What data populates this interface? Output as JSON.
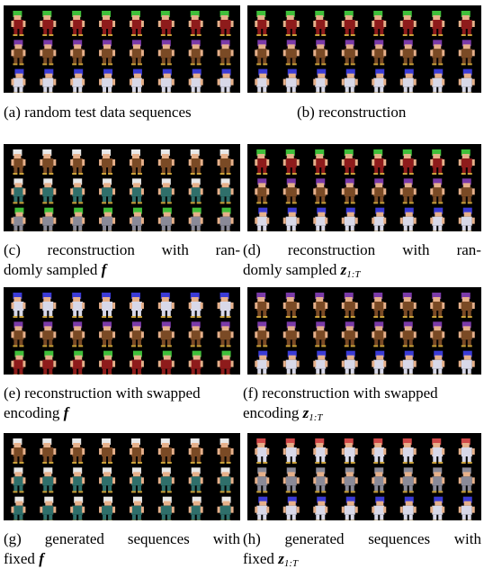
{
  "figure": {
    "panels": [
      {
        "id": "a",
        "caption_lines": [
          "(a) random test data sequences"
        ],
        "rows": [
          "green-hair-red-tunic",
          "purple-hair-brown",
          "blue-hair-white-armor"
        ]
      },
      {
        "id": "b",
        "caption_lines": [
          "(b) reconstruction"
        ],
        "rows": [
          "green-hair-red-tunic",
          "purple-hair-brown",
          "blue-hair-white-armor"
        ]
      },
      {
        "id": "c",
        "caption_words": [
          "(c)",
          "reconstruction",
          "with",
          "ran-"
        ],
        "caption_line2_text": "domly sampled ",
        "caption_line2_sym": "f",
        "rows": [
          "white-hair-brown",
          "white-hair-teal",
          "green-hair-grey"
        ]
      },
      {
        "id": "d",
        "caption_words": [
          "(d)",
          "reconstruction",
          "with",
          "ran-"
        ],
        "caption_line2_text": "domly sampled ",
        "caption_line2_sym": "z",
        "caption_line2_sub": "1:T",
        "rows": [
          "green-hair-red-tunic",
          "purple-hair-brown",
          "blue-hair-white-armor"
        ]
      },
      {
        "id": "e",
        "caption_lines": [
          "(e) reconstruction with swapped"
        ],
        "caption_line2_text": "encoding ",
        "caption_line2_sym": "f",
        "rows": [
          "blue-hair-white-armor",
          "purple-hair-brown",
          "green-hair-red-tunic"
        ]
      },
      {
        "id": "f",
        "caption_lines": [
          "(f) reconstruction with swapped"
        ],
        "caption_line2_text": "encoding ",
        "caption_line2_sym": "z",
        "caption_line2_sub": "1:T",
        "rows": [
          "purple-hair-brown",
          "purple-hair-brown",
          "blue-hair-white-armor"
        ]
      },
      {
        "id": "g",
        "caption_words": [
          "(g)",
          "generated",
          "sequences",
          "with"
        ],
        "caption_line2_text": "fixed ",
        "caption_line2_sym": "f",
        "rows": [
          "white-hair-brown",
          "white-hair-teal",
          "white-hair-teal"
        ]
      },
      {
        "id": "h",
        "caption_words": [
          "(h)",
          "generated",
          "sequences",
          "with"
        ],
        "caption_line2_text": "fixed ",
        "caption_line2_sym": "z",
        "caption_line2_sub": "1:T",
        "rows": [
          "red-hair-white",
          "grey-hair-grey",
          "blue-hair-white"
        ]
      }
    ]
  },
  "colors": {
    "background": "#000000",
    "green-hair": "#3fbf3a",
    "red-tunic": "#8e1b1b",
    "purple-hair": "#7a3aa8",
    "brown-body": "#7a4a25",
    "blue-hair": "#3b3bd6",
    "white-armor": "#d8d8e8",
    "skin": "#e6b08a",
    "white-hair": "#e8e8e8",
    "teal-body": "#2f6f6a",
    "grey-body": "#8a8a98",
    "red-hair": "#d04848"
  }
}
